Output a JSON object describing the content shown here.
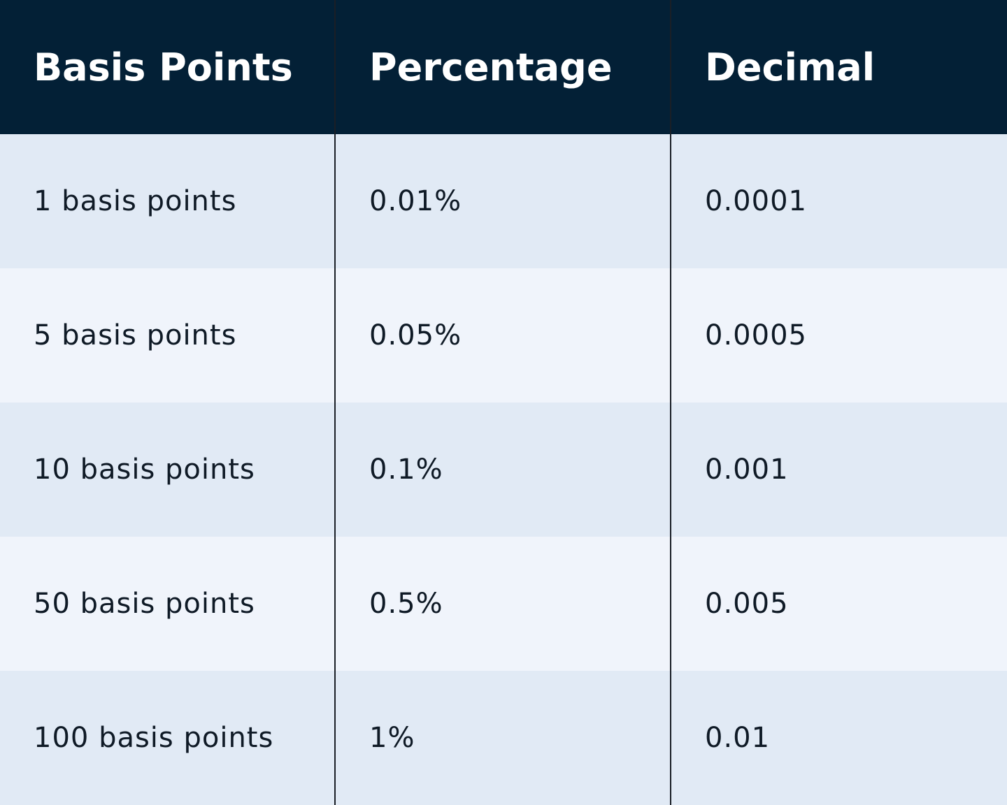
{
  "table": {
    "columns": [
      "Basis Points",
      "Percentage",
      "Decimal"
    ],
    "rows": [
      [
        "1 basis points",
        "0.01%",
        "0.0001"
      ],
      [
        "5 basis points",
        "0.05%",
        "0.0005"
      ],
      [
        "10 basis points",
        "0.1%",
        "0.001"
      ],
      [
        "50 basis points",
        "0.5%",
        "0.005"
      ],
      [
        "100 basis points",
        "1%",
        "0.01"
      ]
    ]
  }
}
